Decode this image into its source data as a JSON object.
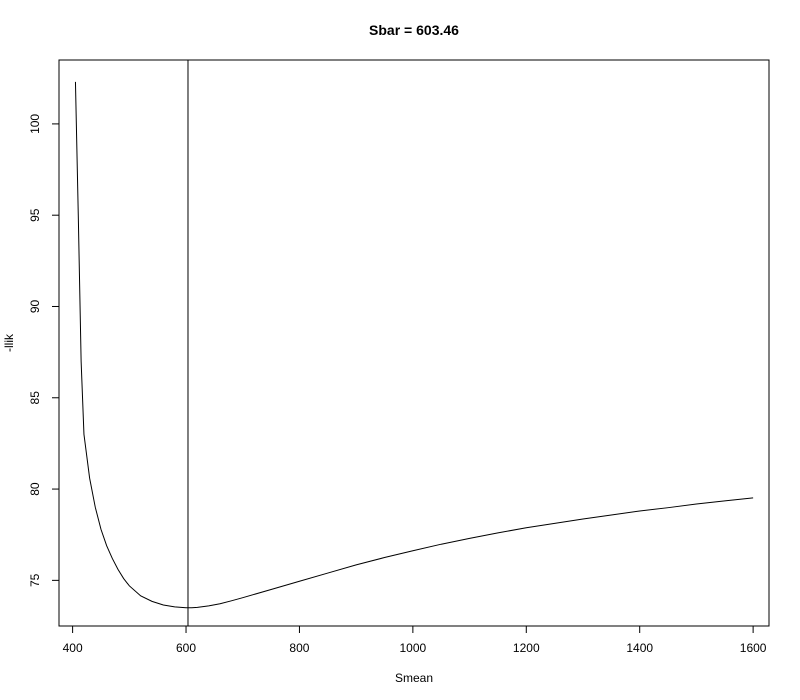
{
  "chart_data": {
    "type": "line",
    "title": "Sbar = 603.46",
    "xlabel": "Smean",
    "ylabel": "-llik",
    "xlim": [
      376,
      1628
    ],
    "ylim": [
      72.5,
      103.5
    ],
    "x_ticks": [
      400,
      600,
      800,
      1000,
      1200,
      1400,
      1600
    ],
    "y_ticks": [
      75,
      80,
      85,
      90,
      95,
      100
    ],
    "grid": false,
    "vertical_line_x": 603.46,
    "series": [
      {
        "x": [
          405,
          410,
          415,
          420,
          430,
          440,
          450,
          460,
          470,
          480,
          490,
          500,
          520,
          540,
          560,
          580,
          600,
          610,
          620,
          640,
          660,
          680,
          700,
          750,
          800,
          850,
          900,
          950,
          1000,
          1050,
          1100,
          1150,
          1200,
          1250,
          1300,
          1350,
          1400,
          1450,
          1500,
          1550,
          1600
        ],
        "y": [
          102.3,
          95.0,
          87.0,
          83.0,
          80.6,
          79.0,
          77.8,
          76.9,
          76.2,
          75.6,
          75.1,
          74.7,
          74.15,
          73.85,
          73.65,
          73.55,
          73.5,
          73.5,
          73.52,
          73.6,
          73.72,
          73.88,
          74.05,
          74.5,
          74.95,
          75.4,
          75.85,
          76.25,
          76.62,
          76.98,
          77.3,
          77.6,
          77.88,
          78.12,
          78.36,
          78.58,
          78.8,
          78.98,
          79.18,
          79.35,
          79.52
        ]
      }
    ]
  }
}
